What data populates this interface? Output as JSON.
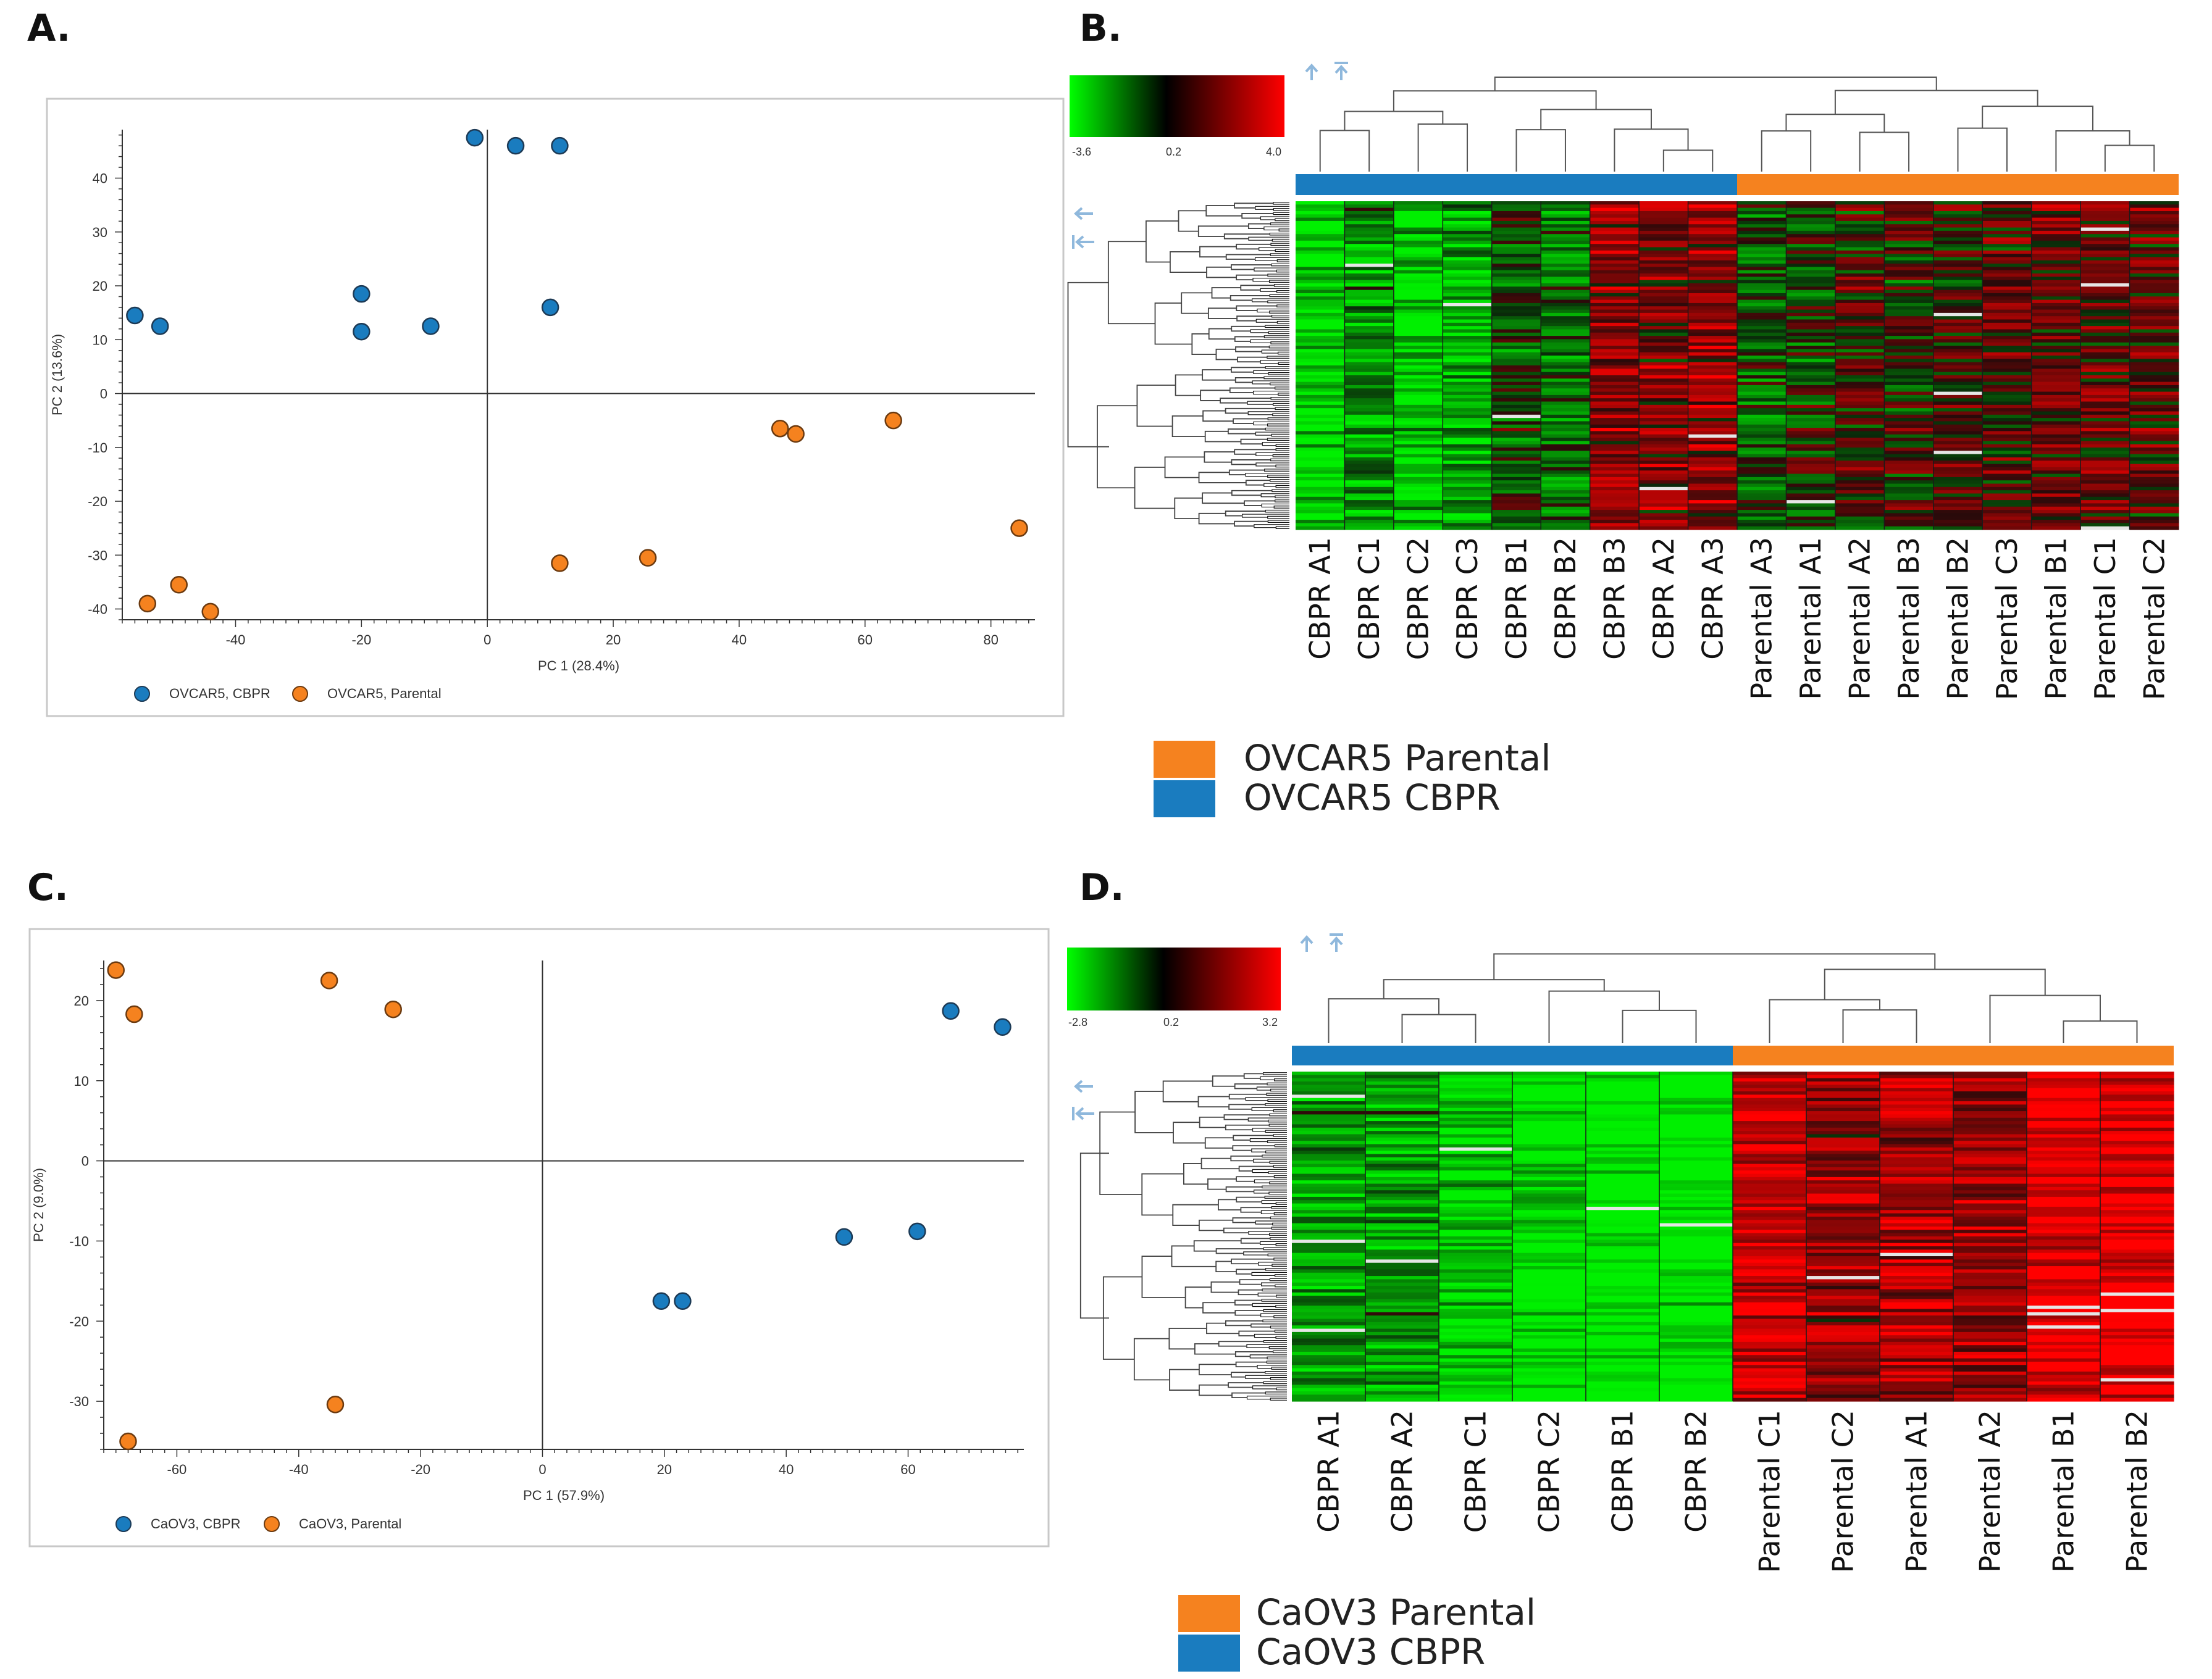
{
  "panel_labels": [
    "A.",
    "B.",
    "C.",
    "D."
  ],
  "colors": {
    "cbpr": "#1a7cbf",
    "parental": "#f5821f",
    "arrow": "#8fb8dc",
    "low": "#00ff00",
    "mid": "#000000",
    "high": "#ff0000"
  },
  "icons": {
    "expand": "arrow-up-icon",
    "expand_all": "arrow-up-bar-icon",
    "collapse": "arrow-left-icon",
    "collapse_all": "arrow-left-bar-icon"
  },
  "chart_data": [
    {
      "id": "A",
      "type": "scatter",
      "xlabel": "PC 1 (28.4%)",
      "ylabel": "PC 2 (13.6%)",
      "xlim": [
        -58,
        87
      ],
      "ylim": [
        -42,
        49
      ],
      "xticks": [
        -40,
        -20,
        0,
        20,
        40,
        60,
        80
      ],
      "yticks": [
        40,
        30,
        20,
        10,
        0,
        -10,
        -20,
        -30,
        -40
      ],
      "series": [
        {
          "name": "OVCAR5, CBPR",
          "color": "#1a7cbf",
          "points": [
            [
              -56,
              14.5
            ],
            [
              -52,
              12.5
            ],
            [
              -20,
              18.5
            ],
            [
              -20,
              11.5
            ],
            [
              -9,
              12.5
            ],
            [
              -2,
              47.5
            ],
            [
              4.5,
              46
            ],
            [
              11.5,
              46
            ],
            [
              10,
              16
            ]
          ]
        },
        {
          "name": "OVCAR5, Parental",
          "color": "#f5821f",
          "points": [
            [
              -54,
              -39
            ],
            [
              -49,
              -35.5
            ],
            [
              -44,
              -40.5
            ],
            [
              11.5,
              -31.5
            ],
            [
              25.5,
              -30.5
            ],
            [
              46.5,
              -6.5
            ],
            [
              49,
              -7.5
            ],
            [
              64.5,
              -5
            ],
            [
              84.5,
              -25
            ]
          ]
        }
      ]
    },
    {
      "id": "B",
      "type": "heatmap",
      "colorbar": {
        "min": "-3.6",
        "mid": "0.2",
        "max": "4.0"
      },
      "groups": [
        {
          "name": "OVCAR5 CBPR",
          "count": 9
        },
        {
          "name": "OVCAR5 Parental",
          "count": 9
        }
      ],
      "columns": [
        "CBPR A1",
        "CBPR C1",
        "CBPR C2",
        "CBPR C3",
        "CBPR B1",
        "CBPR B2",
        "CBPR B3",
        "CBPR A2",
        "CBPR A3",
        "Parental A3",
        "Parental A1",
        "Parental A2",
        "Parental B3",
        "Parental B2",
        "Parental C3",
        "Parental B1",
        "Parental C1",
        "Parental C2"
      ],
      "column_bias": [
        -0.9,
        -0.6,
        -0.9,
        -0.7,
        -0.2,
        -0.4,
        0.5,
        0.4,
        0.55,
        -0.3,
        -0.1,
        0.1,
        0.0,
        0.15,
        0.2,
        0.3,
        0.3,
        0.25
      ],
      "legend": [
        "OVCAR5 Parental",
        "OVCAR5 CBPR"
      ]
    },
    {
      "id": "C",
      "type": "scatter",
      "xlabel": "PC 1 (57.9%)",
      "ylabel": "PC 2 (9.0%)",
      "xlim": [
        -72,
        79
      ],
      "ylim": [
        -36,
        25
      ],
      "xticks": [
        -60,
        -40,
        -20,
        0,
        20,
        40,
        60
      ],
      "yticks": [
        20,
        10,
        0,
        -10,
        -20,
        -30
      ],
      "series": [
        {
          "name": "CaOV3, CBPR",
          "color": "#1a7cbf",
          "points": [
            [
              19.5,
              -17.5
            ],
            [
              23,
              -17.5
            ],
            [
              49.5,
              -9.5
            ],
            [
              61.5,
              -8.8
            ],
            [
              67,
              18.7
            ],
            [
              75.5,
              16.7
            ]
          ]
        },
        {
          "name": "CaOV3, Parental",
          "color": "#f5821f",
          "points": [
            [
              -70,
              23.8
            ],
            [
              -67,
              18.3
            ],
            [
              -35,
              22.5
            ],
            [
              -24.5,
              18.9
            ],
            [
              -34,
              -30.4
            ],
            [
              -68,
              -35
            ]
          ]
        }
      ]
    },
    {
      "id": "D",
      "type": "heatmap",
      "colorbar": {
        "min": "-2.8",
        "mid": "0.2",
        "max": "3.2"
      },
      "groups": [
        {
          "name": "CaOV3 CBPR",
          "count": 6
        },
        {
          "name": "CaOV3 Parental",
          "count": 6
        }
      ],
      "columns": [
        "CBPR A1",
        "CBPR A2",
        "CBPR C1",
        "CBPR C2",
        "CBPR B1",
        "CBPR B2",
        "Parental C1",
        "Parental C2",
        "Parental A1",
        "Parental A2",
        "Parental B1",
        "Parental B2"
      ],
      "column_bias": [
        -0.55,
        -0.55,
        -0.85,
        -0.95,
        -1.1,
        -1.1,
        0.8,
        0.55,
        0.65,
        0.55,
        0.95,
        0.95
      ],
      "legend": [
        "CaOV3 Parental",
        "CaOV3 CBPR"
      ]
    }
  ]
}
